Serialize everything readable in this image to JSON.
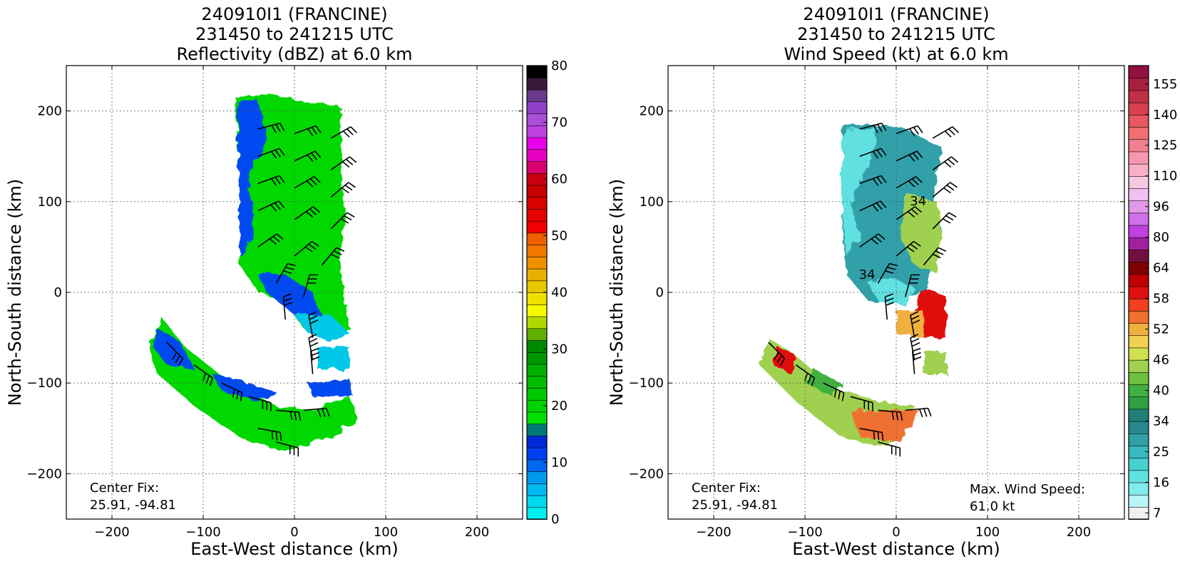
{
  "chart_data": [
    {
      "type": "heatmap",
      "title_lines": [
        "240910I1 (FRANCINE)",
        "231450 to 241215 UTC",
        "Reflectivity (dBZ) at 6.0 km"
      ],
      "xlabel": "East-West distance (km)",
      "ylabel": "North-South distance (km)",
      "xlim": [
        -250,
        250
      ],
      "ylim": [
        -250,
        250
      ],
      "xticks": [
        -200,
        -100,
        0,
        100,
        200
      ],
      "yticks": [
        -200,
        -100,
        0,
        100,
        200
      ],
      "grid": true,
      "annotations": [
        {
          "text": "Center Fix:"
        },
        {
          "text": "25.91, -94.81"
        }
      ],
      "colorbar": {
        "min": 0,
        "max": 80,
        "tick_labels": [
          "0",
          "10",
          "20",
          "30",
          "40",
          "50",
          "60",
          "70",
          "80"
        ],
        "colors": [
          "#00f0f0",
          "#00d8f0",
          "#00b8f0",
          "#0098f0",
          "#0068f0",
          "#0040f0",
          "#0028d8",
          "#007878",
          "#00e000",
          "#00d400",
          "#00c800",
          "#00bc00",
          "#00b000",
          "#009800",
          "#008800",
          "#60b000",
          "#b0d800",
          "#f8f800",
          "#f0e000",
          "#e8c800",
          "#e8b000",
          "#f09000",
          "#f07800",
          "#f06000",
          "#f00000",
          "#e80000",
          "#d80000",
          "#c80000",
          "#c80010",
          "#d80070",
          "#e800c0",
          "#e800e8",
          "#c040e0",
          "#a850d8",
          "#9040c8",
          "#6a3a8a",
          "#3a1a3a",
          "#000000"
        ]
      },
      "wind_barbs_shown": true
    },
    {
      "type": "heatmap",
      "title_lines": [
        "240910I1 (FRANCINE)",
        "231450 to 241215 UTC",
        "Wind Speed (kt) at 6.0 km"
      ],
      "xlabel": "East-West distance (km)",
      "ylabel": "North-South distance (km)",
      "xlim": [
        -250,
        250
      ],
      "ylim": [
        -250,
        250
      ],
      "xticks": [
        -200,
        -100,
        0,
        100,
        200
      ],
      "yticks": [
        -200,
        -100,
        0,
        100,
        200
      ],
      "grid": true,
      "annotations": [
        {
          "text": "Center Fix:"
        },
        {
          "text": "25.91, -94.81"
        },
        {
          "text": "Max. Wind Speed:"
        },
        {
          "text": "61.0 kt"
        }
      ],
      "contour_labels": [
        "34",
        "34"
      ],
      "max_wind_speed_kt": 61.0,
      "colorbar": {
        "tick_labels": [
          "7",
          "16",
          "25",
          "34",
          "40",
          "46",
          "52",
          "58",
          "64",
          "80",
          "96",
          "110",
          "125",
          "140",
          "155"
        ],
        "colors": [
          "#f0f0f0",
          "#b8f4f4",
          "#80ecec",
          "#60e0e0",
          "#48d0d0",
          "#38b8c0",
          "#30a0a8",
          "#288890",
          "#208078",
          "#30a040",
          "#40b040",
          "#70c040",
          "#a0d050",
          "#d0e050",
          "#f0d050",
          "#f0b040",
          "#f07030",
          "#f04020",
          "#e01010",
          "#c00000",
          "#800000",
          "#701040",
          "#a020a0",
          "#c040e0",
          "#d070e8",
          "#e098e8",
          "#f0c0f0",
          "#f8c8e0",
          "#f8b0c8",
          "#f898b0",
          "#f08090",
          "#f07070",
          "#e85860",
          "#d84050",
          "#c03048",
          "#a82040",
          "#901040"
        ]
      },
      "wind_barbs_shown": true
    }
  ]
}
